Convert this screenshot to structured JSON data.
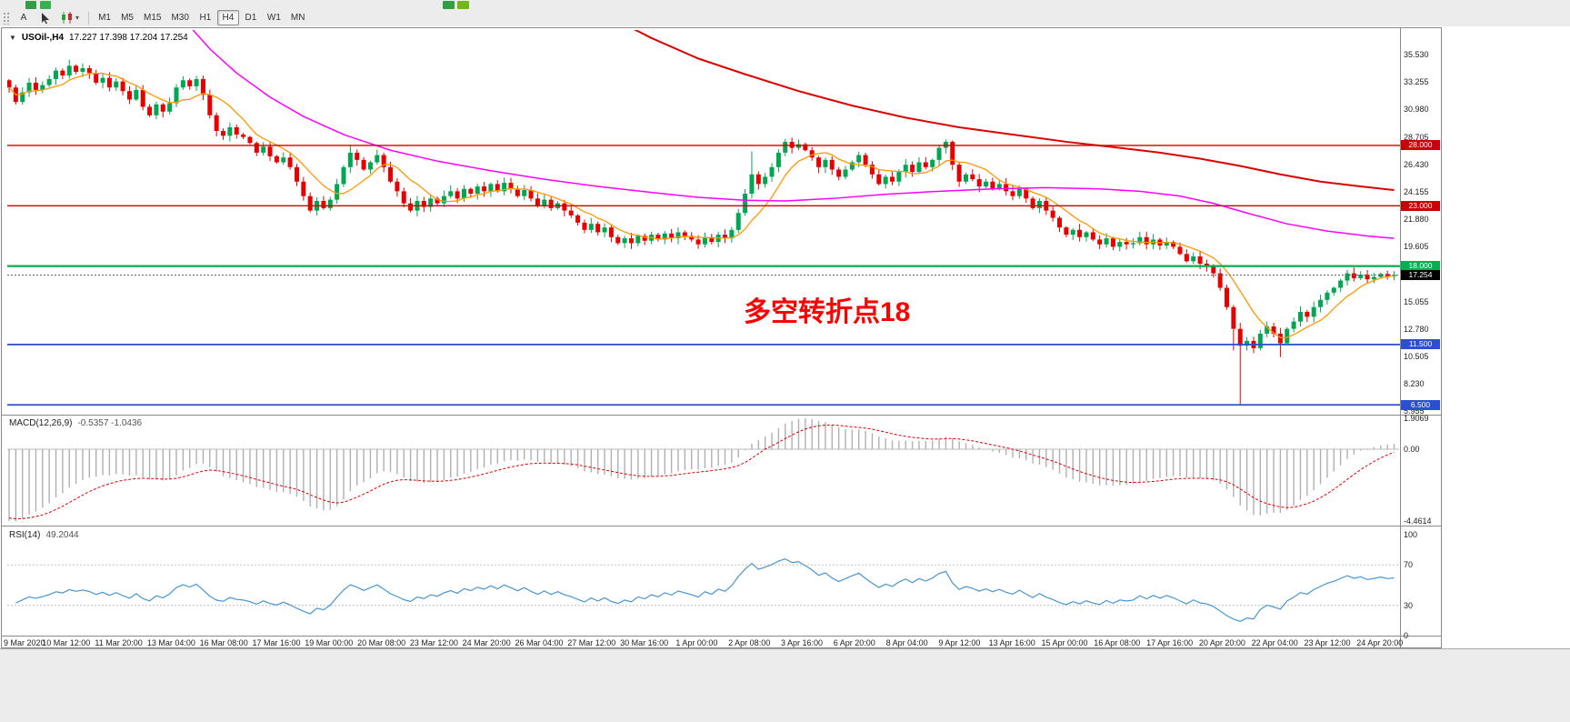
{
  "toolbar": {
    "tools": {
      "annotation_label": "A"
    },
    "timeframes": [
      "M1",
      "M5",
      "M15",
      "M30",
      "H1",
      "H4",
      "D1",
      "W1",
      "MN"
    ],
    "active_timeframe": "H4"
  },
  "chart": {
    "title": "USOil-,H4",
    "ohlc_text": "17.227 17.398 17.204 17.254",
    "annotation": "多空转折点18",
    "price_axis": [
      "35.530",
      "33.255",
      "30.980",
      "28.705",
      "26.430",
      "24.155",
      "21.880",
      "19.605",
      "17.330",
      "15.055",
      "12.780",
      "10.505",
      "8.230",
      "5.955"
    ],
    "levels": [
      {
        "price": 28.0,
        "label": "28.000",
        "color": "#cc0000",
        "width": 1.4
      },
      {
        "price": 23.0,
        "label": "23.000",
        "color": "#cc0000",
        "width": 1.4
      },
      {
        "price": 18.0,
        "label": "18.000",
        "color": "#00b050",
        "width": 2.2
      },
      {
        "price": 11.5,
        "label": "11.500",
        "color": "#2b4fd0",
        "width": 1.8
      },
      {
        "price": 6.5,
        "label": "6.500",
        "color": "#2b4fd0",
        "width": 1.8
      }
    ],
    "current_price": {
      "value": 17.254,
      "label": "17.254",
      "bg": "#000000"
    },
    "colors": {
      "up": "#00a651",
      "down": "#e60000",
      "ma_fast": "#ff9800",
      "ma_mid": "#ff00ff",
      "ma_slow": "#dd0000",
      "macd_hist": "#b0b0b0",
      "macd_signal": "#dd0000",
      "rsi": "#4a96d2"
    }
  },
  "macd": {
    "label": "MACD(12,26,9)",
    "values_text": "-0.5357 -1.0436",
    "axis": [
      "1.9069",
      "0.00",
      "-4.4614"
    ]
  },
  "rsi": {
    "label": "RSI(14)",
    "value_text": "49.2044",
    "axis": [
      "100",
      "70",
      "30",
      "0"
    ]
  },
  "time_axis": [
    "9 Mar 2020",
    "10 Mar 12:00",
    "11 Mar 20:00",
    "13 Mar 04:00",
    "16 Mar 08:00",
    "17 Mar 16:00",
    "19 Mar 00:00",
    "20 Mar 08:00",
    "23 Mar 12:00",
    "24 Mar 20:00",
    "26 Mar 04:00",
    "27 Mar 12:00",
    "30 Mar 16:00",
    "1 Apr 00:00",
    "2 Apr 08:00",
    "3 Apr 16:00",
    "6 Apr 20:00",
    "8 Apr 04:00",
    "9 Apr 12:00",
    "13 Apr 16:00",
    "15 Apr 00:00",
    "16 Apr 08:00",
    "17 Apr 16:00",
    "20 Apr 20:00",
    "22 Apr 04:00",
    "23 Apr 12:00",
    "24 Apr 20:00"
  ],
  "chart_data": {
    "type": "candlestick",
    "symbol": "USOil",
    "timeframe": "H4",
    "ohlc_current": {
      "open": 17.227,
      "high": 17.398,
      "low": 17.204,
      "close": 17.254
    },
    "ylim": [
      5.77,
      37.56
    ],
    "first_open": 33.4,
    "closes": [
      32.8,
      31.6,
      32.4,
      33.2,
      32.6,
      33.0,
      33.5,
      34.2,
      33.8,
      34.6,
      34.1,
      34.4,
      34.0,
      33.2,
      33.6,
      32.8,
      33.3,
      32.5,
      31.8,
      32.6,
      31.2,
      30.5,
      31.4,
      30.8,
      31.5,
      32.8,
      33.4,
      32.9,
      33.5,
      32.2,
      30.5,
      29.2,
      28.8,
      29.5,
      28.9,
      28.7,
      28.2,
      27.4,
      27.9,
      27.1,
      26.6,
      27.0,
      26.2,
      25.0,
      23.8,
      22.6,
      23.4,
      22.8,
      23.5,
      24.8,
      26.2,
      27.4,
      26.8,
      26.0,
      26.6,
      27.2,
      26.2,
      25.0,
      24.2,
      23.2,
      22.6,
      23.4,
      22.9,
      23.6,
      23.2,
      23.8,
      24.2,
      23.6,
      24.4,
      24.0,
      24.6,
      24.2,
      24.8,
      24.2,
      24.9,
      24.4,
      23.8,
      24.3,
      23.6,
      23.0,
      23.5,
      22.8,
      23.2,
      22.6,
      22.2,
      21.6,
      21.0,
      21.5,
      20.8,
      21.2,
      20.4,
      19.9,
      20.3,
      19.9,
      20.5,
      20.1,
      20.6,
      20.2,
      20.7,
      20.3,
      20.8,
      20.5,
      20.2,
      19.8,
      20.4,
      20.0,
      20.6,
      20.3,
      21.0,
      22.4,
      24.0,
      25.6,
      24.8,
      25.4,
      26.2,
      27.4,
      28.3,
      27.8,
      28.1,
      27.6,
      27.0,
      26.2,
      26.8,
      26.0,
      25.4,
      26.0,
      26.6,
      27.2,
      26.4,
      25.6,
      24.8,
      25.4,
      25.0,
      25.8,
      26.4,
      25.8,
      26.6,
      26.2,
      26.8,
      27.8,
      28.3,
      26.4,
      25.0,
      25.6,
      25.2,
      24.6,
      25.0,
      24.4,
      24.8,
      24.2,
      23.8,
      24.4,
      23.6,
      22.8,
      23.4,
      22.6,
      22.0,
      21.2,
      20.6,
      21.0,
      20.4,
      20.8,
      20.2,
      19.8,
      20.3,
      19.6,
      20.0,
      19.8,
      19.9,
      20.4,
      19.8,
      20.2,
      19.7,
      20.0,
      19.6,
      19.0,
      18.4,
      18.8,
      18.2,
      18.0,
      17.4,
      16.2,
      14.6,
      12.8,
      11.4,
      11.8,
      11.2,
      12.4,
      13.0,
      12.4,
      11.6,
      12.8,
      13.4,
      14.2,
      13.8,
      14.6,
      15.2,
      15.8,
      16.2,
      16.8,
      17.4,
      17.0,
      17.3,
      16.9,
      17.1,
      17.35,
      17.15,
      17.254
    ],
    "wick_overrides": {
      "9": {
        "high": 35.1
      },
      "51": {
        "high": 28.05
      },
      "111": {
        "high": 27.5
      },
      "140": {
        "high": 28.5
      },
      "183": {
        "low": 11.0
      },
      "184": {
        "low": 6.55
      },
      "190": {
        "low": 10.45
      }
    },
    "ma_magenta": [
      [
        26,
        38.5
      ],
      [
        30,
        36.0
      ],
      [
        34,
        34.0
      ],
      [
        39,
        32.0
      ],
      [
        44,
        30.4
      ],
      [
        50,
        28.9
      ],
      [
        57,
        27.6
      ],
      [
        64,
        26.7
      ],
      [
        72,
        25.9
      ],
      [
        80,
        25.2
      ],
      [
        88,
        24.6
      ],
      [
        96,
        24.1
      ],
      [
        103,
        23.7
      ],
      [
        110,
        23.45
      ],
      [
        116,
        23.4
      ],
      [
        123,
        23.6
      ],
      [
        131,
        23.95
      ],
      [
        139,
        24.2
      ],
      [
        147,
        24.4
      ],
      [
        155,
        24.5
      ],
      [
        163,
        24.4
      ],
      [
        169,
        24.2
      ],
      [
        175,
        23.8
      ],
      [
        180,
        23.2
      ],
      [
        185,
        22.4
      ],
      [
        191,
        21.5
      ],
      [
        197,
        20.9
      ],
      [
        203,
        20.5
      ],
      [
        207,
        20.3
      ]
    ],
    "ma_red": [
      [
        90,
        38.6
      ],
      [
        96,
        36.9
      ],
      [
        103,
        35.2
      ],
      [
        110,
        33.9
      ],
      [
        118,
        32.5
      ],
      [
        126,
        31.3
      ],
      [
        134,
        30.3
      ],
      [
        142,
        29.5
      ],
      [
        150,
        28.9
      ],
      [
        158,
        28.3
      ],
      [
        166,
        27.8
      ],
      [
        172,
        27.4
      ],
      [
        178,
        26.9
      ],
      [
        184,
        26.3
      ],
      [
        190,
        25.6
      ],
      [
        196,
        25.0
      ],
      [
        202,
        24.6
      ],
      [
        207,
        24.3
      ]
    ],
    "macd_seed": {
      "ema12": 34.5,
      "ema26": 37.3,
      "signal": -2.6
    },
    "rsi_seed": {
      "avg_gain": 0.45,
      "avg_loss": 0.85
    },
    "rsi_levels": [
      70,
      30
    ]
  }
}
